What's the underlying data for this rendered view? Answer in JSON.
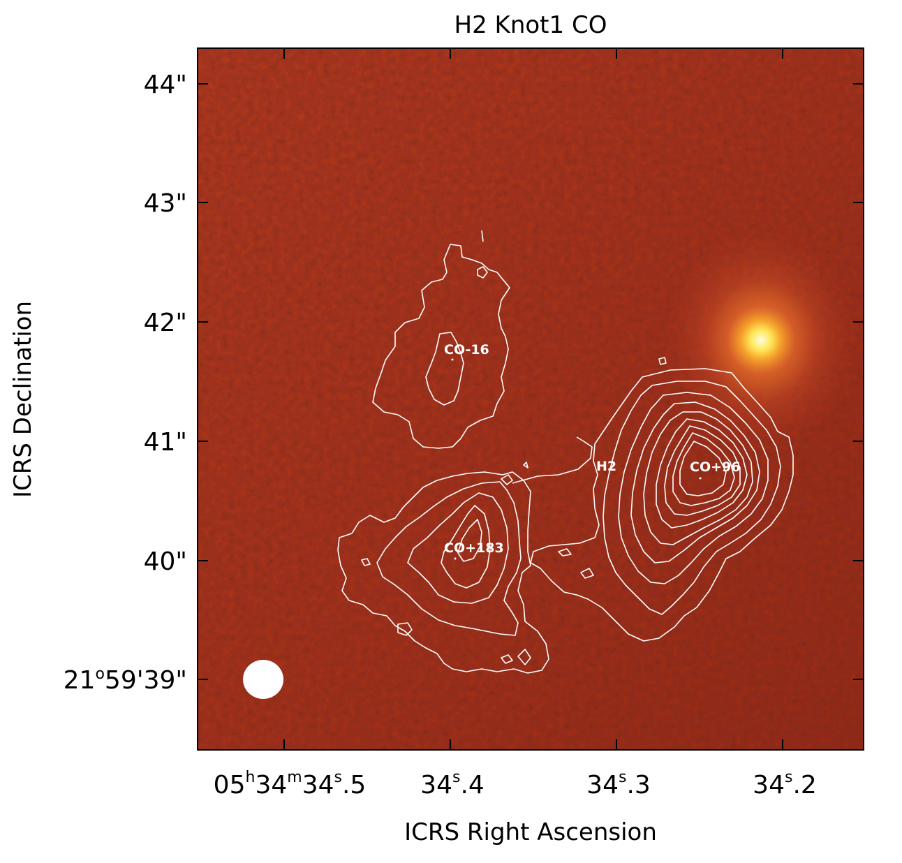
{
  "title": "H2 Knot1 CO",
  "xlabel": "ICRS Right Ascension",
  "ylabel": "ICRS Declination",
  "x_ticks": [
    {
      "h": "05",
      "m": "34",
      "s": "34",
      "frac": ".5",
      "full": true
    },
    {
      "s": "34",
      "frac": ".4"
    },
    {
      "s": "34",
      "frac": ".3"
    },
    {
      "s": "34",
      "frac": ".2"
    }
  ],
  "y_ticks": [
    {
      "label": "44\""
    },
    {
      "label": "43\""
    },
    {
      "label": "42\""
    },
    {
      "label": "41\""
    },
    {
      "label": "40\""
    },
    {
      "deg": "21",
      "rest": "59'39\"",
      "full": true
    }
  ],
  "sources": [
    {
      "id": "co-16",
      "label": "CO-16"
    },
    {
      "id": "h2",
      "label": "H2"
    },
    {
      "id": "co-96",
      "label": "CO+96"
    },
    {
      "id": "co-183",
      "label": "CO+183"
    }
  ],
  "colors": {
    "background_map": "#b5361c",
    "star_core": "#fff6b0",
    "contours": "#ffffff"
  }
}
